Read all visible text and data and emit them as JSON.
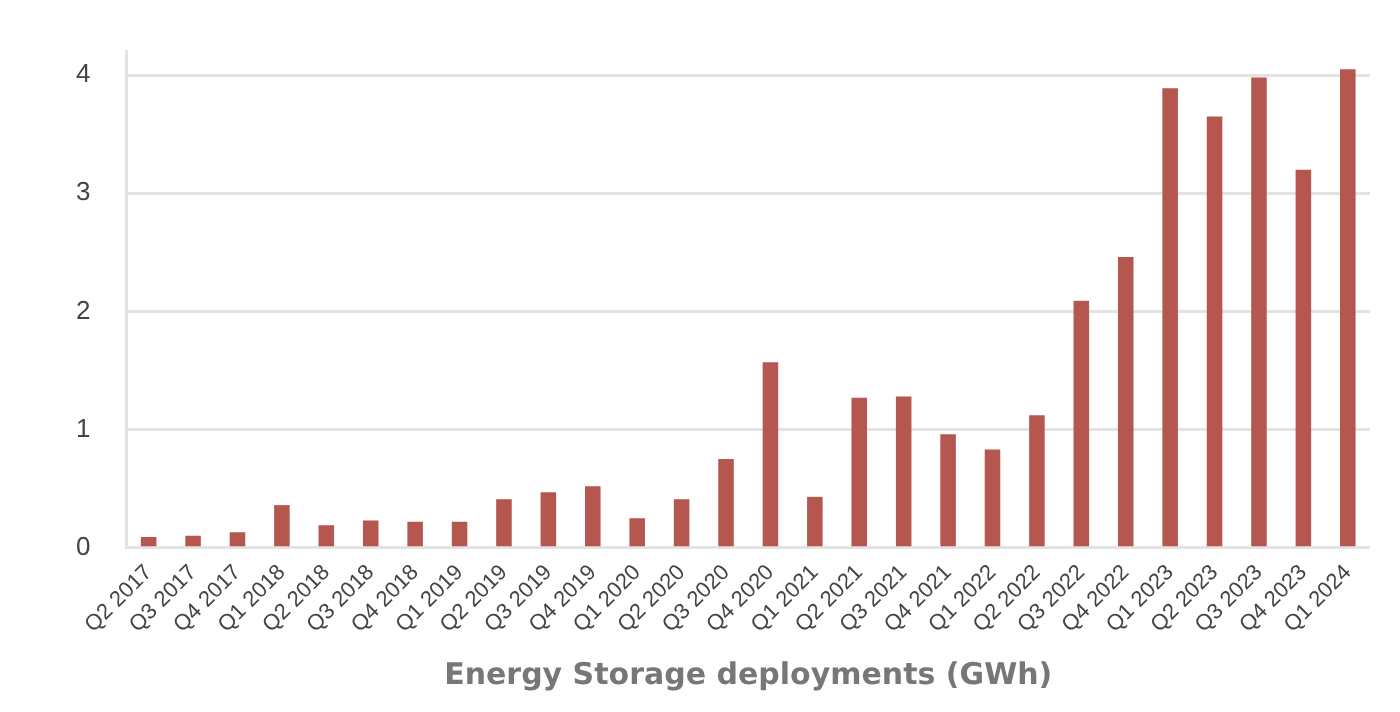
{
  "chart_data": {
    "type": "bar",
    "xlabel": "Energy Storage deployments (GWh)",
    "categories": [
      "Q2 2017",
      "Q3 2017",
      "Q4 2017",
      "Q1 2018",
      "Q2 2018",
      "Q3 2018",
      "Q4 2018",
      "Q1 2019",
      "Q2 2019",
      "Q3 2019",
      "Q4 2019",
      "Q1 2020",
      "Q2 2020",
      "Q3 2020",
      "Q4 2020",
      "Q1 2021",
      "Q2 2021",
      "Q3 2021",
      "Q4 2021",
      "Q1 2022",
      "Q2 2022",
      "Q3 2022",
      "Q4 2022",
      "Q1 2023",
      "Q2 2023",
      "Q3 2023",
      "Q4 2023",
      "Q1 2024"
    ],
    "values": [
      0.09,
      0.1,
      0.13,
      0.36,
      0.19,
      0.23,
      0.22,
      0.22,
      0.41,
      0.47,
      0.52,
      0.25,
      0.41,
      0.75,
      1.57,
      0.43,
      1.27,
      1.28,
      0.96,
      0.83,
      1.12,
      2.09,
      2.46,
      3.89,
      3.65,
      3.98,
      3.2,
      4.05
    ],
    "color": "#b5564f",
    "ylim": [
      0,
      4.2
    ],
    "yticks": [
      0,
      1,
      2,
      3,
      4
    ],
    "grid": "y"
  }
}
